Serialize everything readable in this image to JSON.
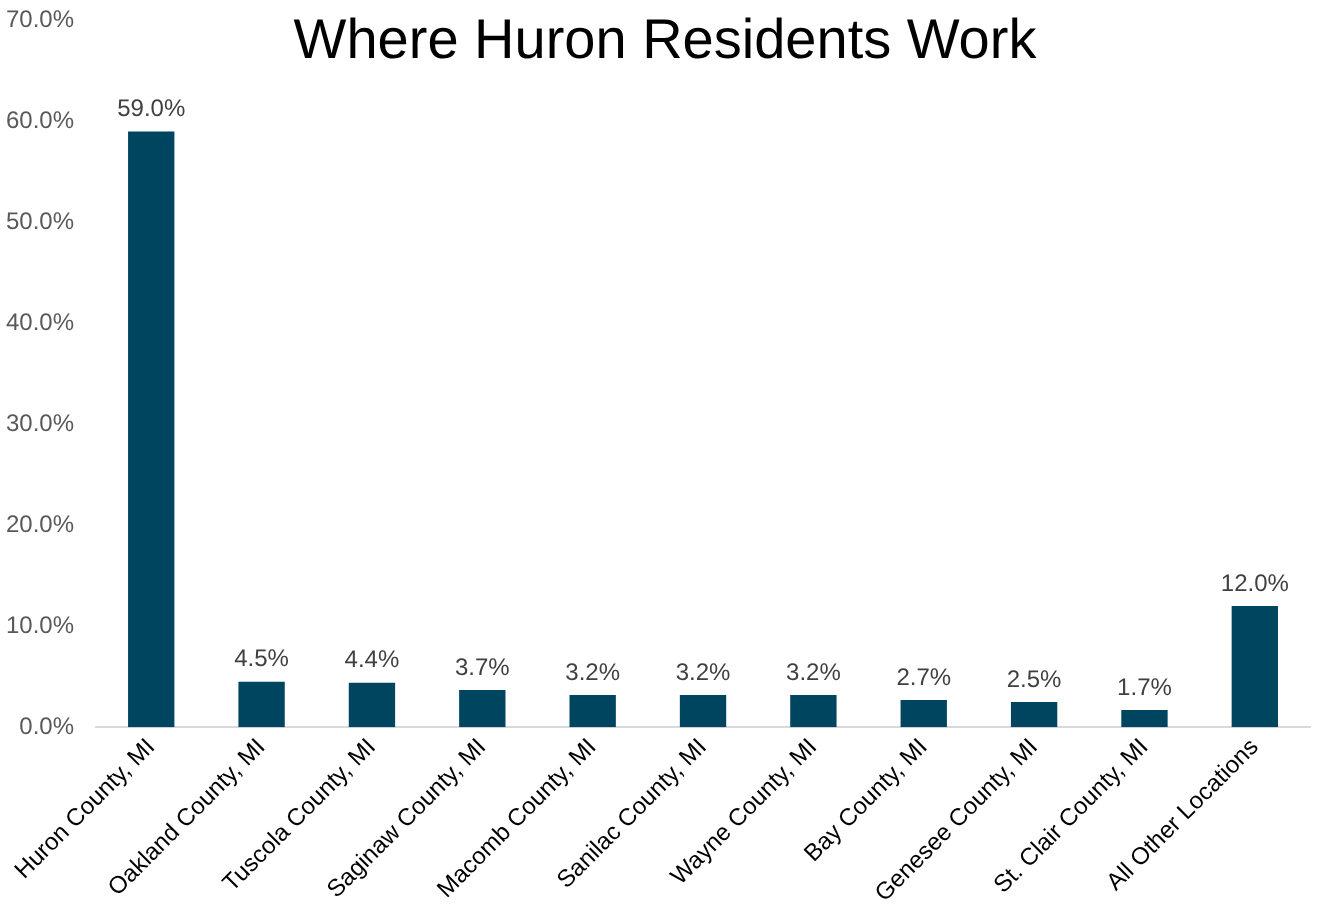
{
  "chart_data": {
    "type": "bar",
    "title": "Where Huron Residents Work",
    "categories": [
      "Huron County, MI",
      "Oakland County, MI",
      "Tuscola County, MI",
      "Saginaw County, MI",
      "Macomb County, MI",
      "Sanilac County, MI",
      "Wayne County, MI",
      "Bay County, MI",
      "Genesee County, MI",
      "St. Clair County, MI",
      "All Other Locations"
    ],
    "values": [
      59.0,
      4.5,
      4.4,
      3.7,
      3.2,
      3.2,
      3.2,
      2.7,
      2.5,
      1.7,
      12.0
    ],
    "value_labels": [
      "59.0%",
      "4.5%",
      "4.4%",
      "3.7%",
      "3.2%",
      "3.2%",
      "3.2%",
      "2.7%",
      "2.5%",
      "1.7%",
      "12.0%"
    ],
    "color": "#004560",
    "ylim": [
      0,
      70
    ],
    "yticks": [
      {
        "value": 0,
        "label": "0.0%"
      },
      {
        "value": 10,
        "label": "10.0%"
      },
      {
        "value": 20,
        "label": "20.0%"
      },
      {
        "value": 30,
        "label": "30.0%"
      },
      {
        "value": 40,
        "label": "40.0%"
      },
      {
        "value": 50,
        "label": "50.0%"
      },
      {
        "value": 60,
        "label": "60.0%"
      },
      {
        "value": 70,
        "label": "70.0%"
      }
    ],
    "grid": false,
    "legend": false
  }
}
